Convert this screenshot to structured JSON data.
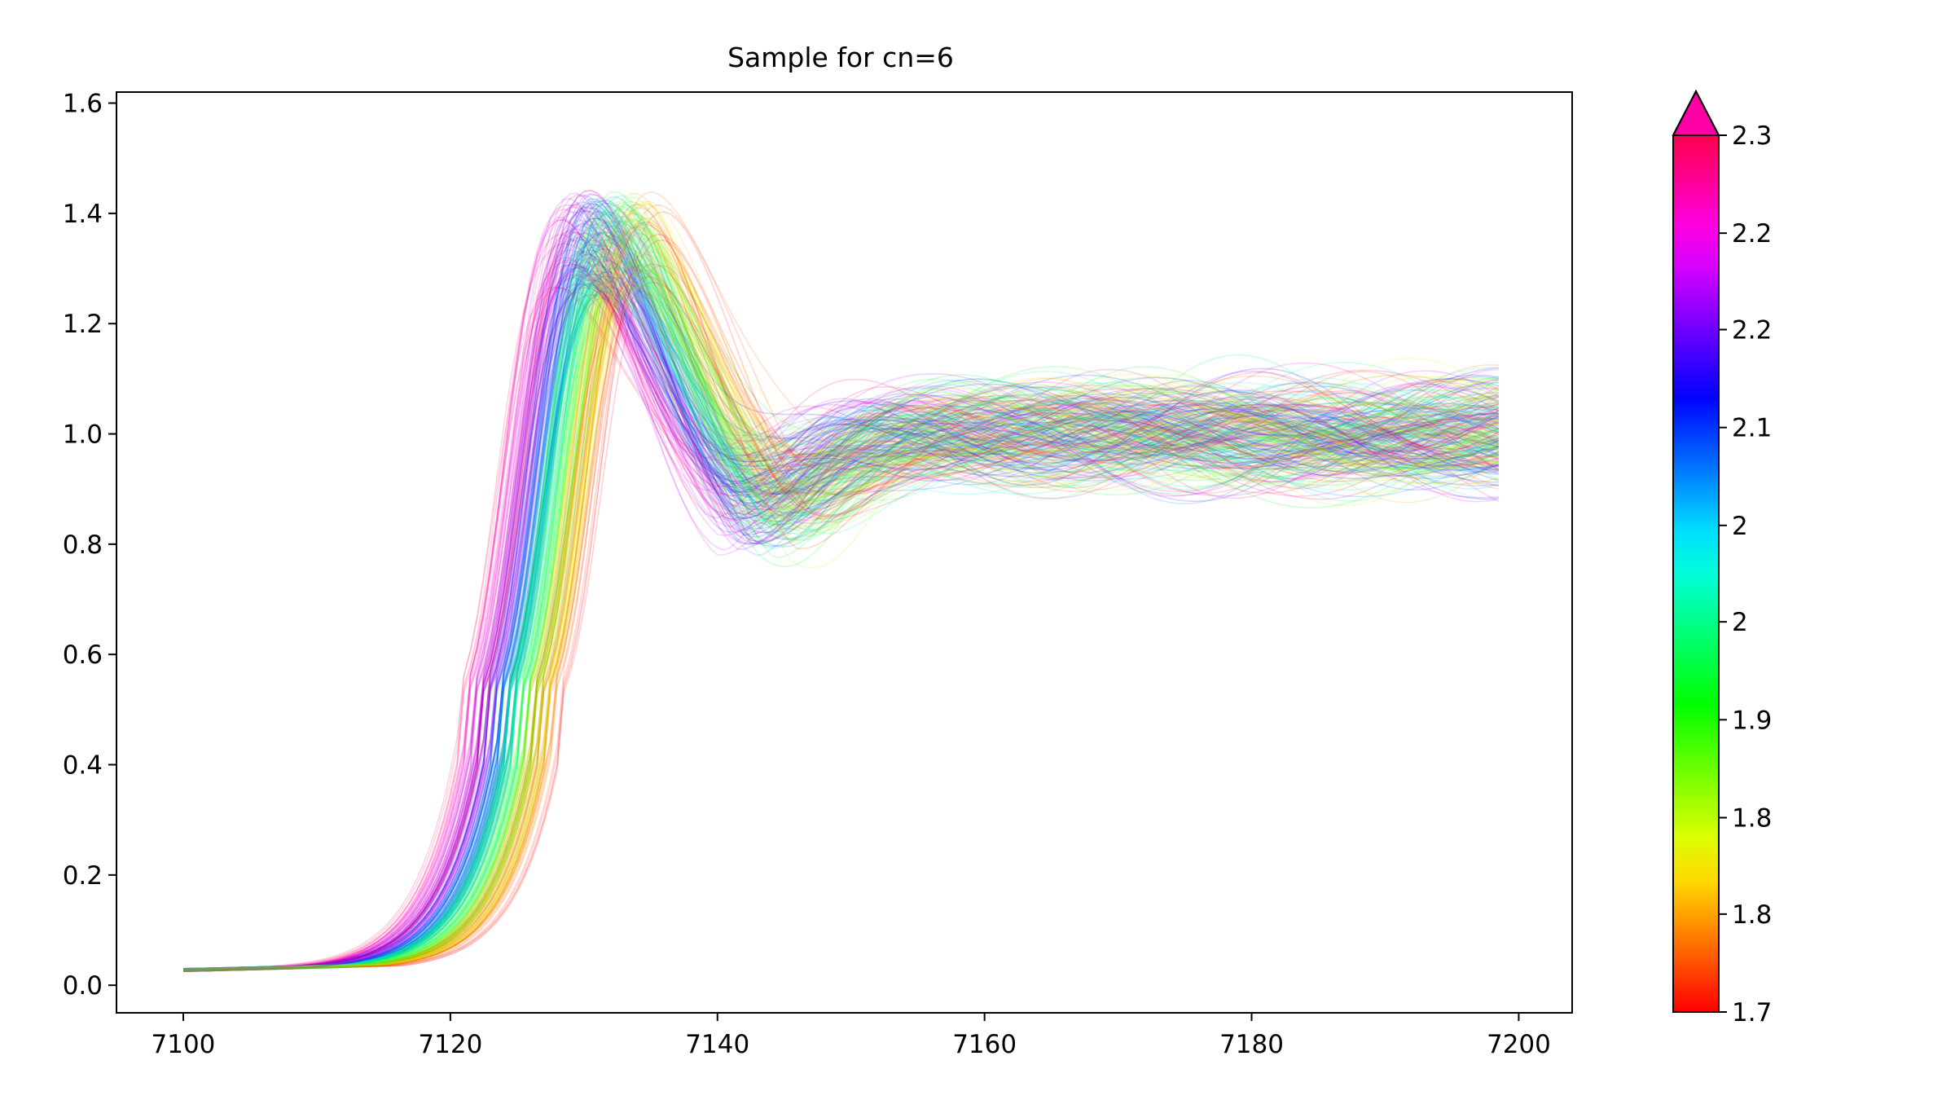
{
  "chart_data": {
    "type": "line",
    "title": "Sample for cn=6",
    "xlabel": "",
    "ylabel": "",
    "xlim": [
      7095,
      7204
    ],
    "ylim": [
      -0.05,
      1.62
    ],
    "x_ticks": [
      7100,
      7120,
      7140,
      7160,
      7180,
      7200
    ],
    "y_ticks": [
      0.0,
      0.2,
      0.4,
      0.6,
      0.8,
      1.0,
      1.2,
      1.4,
      1.6
    ],
    "x_range": [
      7100,
      7198.5
    ],
    "grid": false,
    "legend": "none",
    "series_description": "About 300 overlaid spectra, each coloured by a colorbar value between 1.7 and 2.3",
    "series_count": 300,
    "line_opacity": 0.18,
    "start_value_range": [
      0.025,
      0.03
    ],
    "edge_position_range": [
      7121.5,
      7127.5
    ],
    "peak_x_range": [
      7128,
      7138
    ],
    "peak_y_range": [
      1.25,
      1.52
    ],
    "end_value_range": [
      0.98,
      1.1
    ],
    "colorbar": {
      "vmin": 1.7,
      "vmax": 2.3,
      "extend": "max",
      "tick_values": [
        1.7,
        1.767,
        1.833,
        1.9,
        1.967,
        2.033,
        2.1,
        2.167,
        2.233,
        2.3
      ],
      "tick_labels": [
        "1.7",
        "1.8",
        "1.8",
        "1.9",
        "2",
        "2",
        "2.1",
        "2.2",
        "2.2",
        "2.3"
      ],
      "colormap": "hsv",
      "extend_color": "#ff00a5"
    }
  }
}
